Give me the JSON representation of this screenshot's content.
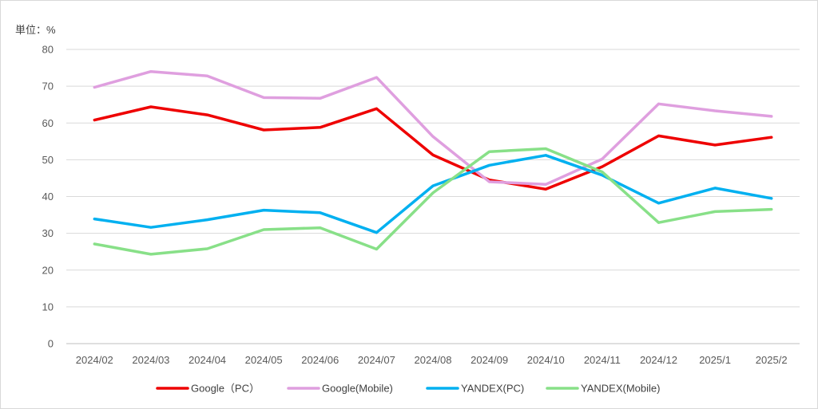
{
  "chart_data": {
    "type": "line",
    "title": "",
    "unit_label": "単位：%",
    "xlabel": "",
    "ylabel": "",
    "ylim": [
      0,
      80
    ],
    "yticks": [
      0,
      10,
      20,
      30,
      40,
      50,
      60,
      70,
      80
    ],
    "grid": true,
    "legend_position": "bottom",
    "categories": [
      "2024/02",
      "2024/03",
      "2024/04",
      "2024/05",
      "2024/06",
      "2024/07",
      "2024/08",
      "2024/09",
      "2024/10",
      "2024/11",
      "2024/12",
      "2025/1",
      "2025/2"
    ],
    "series": [
      {
        "name": "Google（PC）",
        "color": "#ee0000",
        "values": [
          60.8,
          64.4,
          62.2,
          58.1,
          58.8,
          63.9,
          51.3,
          44.5,
          42.0,
          48.1,
          56.5,
          54.0,
          56.1
        ]
      },
      {
        "name": "Google(Mobile)",
        "color": "#df9fdf",
        "values": [
          69.7,
          74.0,
          72.8,
          66.9,
          66.7,
          72.4,
          56.3,
          44.0,
          43.3,
          50.2,
          65.2,
          63.3,
          61.8
        ]
      },
      {
        "name": "YANDEX(PC)",
        "color": "#00b0f0",
        "values": [
          33.9,
          31.6,
          33.7,
          36.3,
          35.6,
          30.2,
          42.9,
          48.5,
          51.2,
          45.8,
          38.2,
          42.3,
          39.5
        ]
      },
      {
        "name": "YANDEX(Mobile)",
        "color": "#88e088",
        "values": [
          27.1,
          24.3,
          25.8,
          31.0,
          31.5,
          25.7,
          41.0,
          52.2,
          53.0,
          46.7,
          32.9,
          35.9,
          36.5
        ]
      }
    ]
  }
}
